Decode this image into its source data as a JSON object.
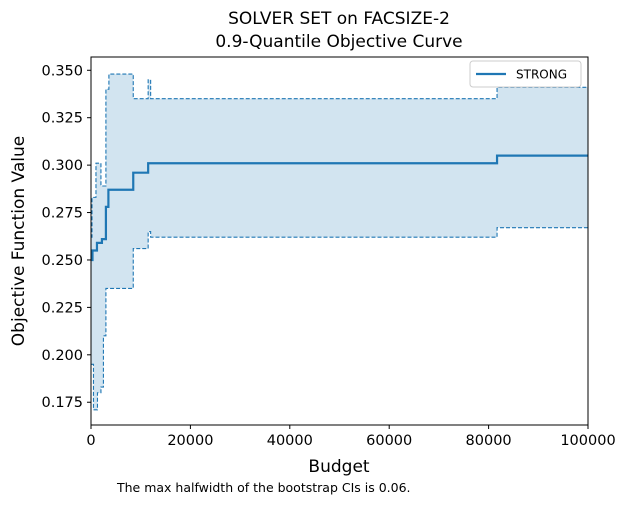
{
  "chart_data": {
    "type": "line",
    "title": "SOLVER SET on FACSIZE-2",
    "subtitle": "0.9-Quantile Objective Curve",
    "xlabel": "Budget",
    "ylabel": "Objective Function Value",
    "xlim": [
      0,
      100000
    ],
    "ylim": [
      0.163,
      0.357
    ],
    "xticks": [
      0,
      20000,
      40000,
      60000,
      80000,
      100000
    ],
    "xtick_labels": [
      "0",
      "20000",
      "40000",
      "60000",
      "80000",
      "100000"
    ],
    "yticks": [
      0.175,
      0.2,
      0.225,
      0.25,
      0.275,
      0.3,
      0.325,
      0.35
    ],
    "ytick_labels": [
      "0.175",
      "0.200",
      "0.225",
      "0.250",
      "0.275",
      "0.300",
      "0.325",
      "0.350"
    ],
    "legend_position": "top-right",
    "grid": false,
    "series": [
      {
        "name": "STRONG",
        "color": "#1f77b4",
        "style": "step",
        "x": [
          0,
          300,
          1200,
          2200,
          3000,
          3500,
          8500,
          11500,
          81700,
          100000
        ],
        "y": [
          0.25,
          0.255,
          0.259,
          0.261,
          0.278,
          0.287,
          0.296,
          0.301,
          0.305,
          0.305
        ],
        "ci_lower": {
          "x": [
            0,
            500,
            1300,
            2000,
            2500,
            3000,
            8500,
            11500,
            12000,
            81700,
            100000
          ],
          "y": [
            0.195,
            0.171,
            0.18,
            0.183,
            0.21,
            0.235,
            0.256,
            0.265,
            0.262,
            0.267,
            0.267
          ]
        },
        "ci_upper": {
          "x": [
            0,
            200,
            1000,
            2000,
            3000,
            3600,
            8500,
            11500,
            12000,
            81700,
            100000
          ],
          "y": [
            0.262,
            0.283,
            0.301,
            0.289,
            0.34,
            0.348,
            0.335,
            0.345,
            0.335,
            0.341,
            0.341
          ]
        }
      }
    ]
  },
  "caption": "The max halfwidth of the bootstrap CIs is 0.06."
}
